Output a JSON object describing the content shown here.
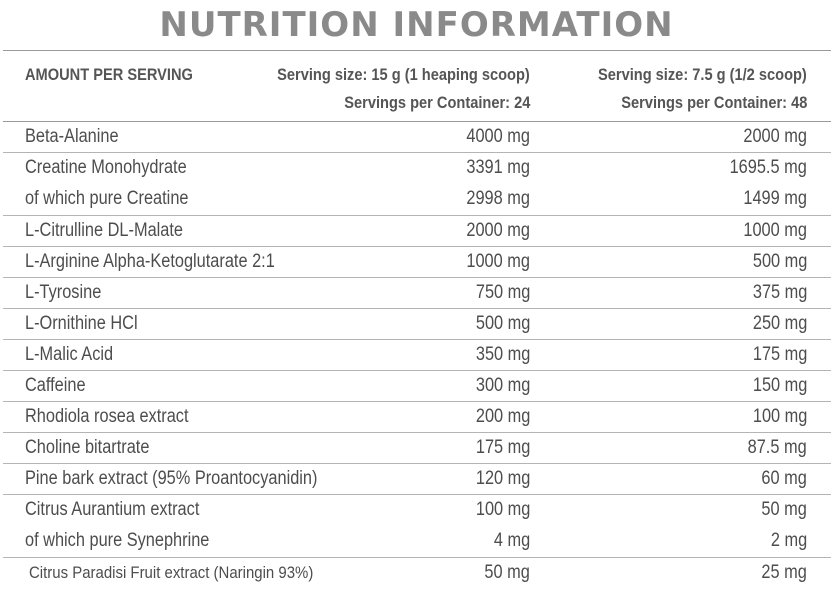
{
  "title": "NUTRITION INFORMATION",
  "header": {
    "amount_label": "AMOUNT PER SERVING",
    "col1_serving_size": "Serving size: 15 g (1 heaping scoop)",
    "col1_servings": "Servings per Container: 24",
    "col2_serving_size": "Serving size: 7.5 g (1/2 scoop)",
    "col2_servings": "Servings per Container: 48"
  },
  "rows": [
    {
      "name": "Beta-Alanine",
      "v1": "4000 mg",
      "v2": "2000 mg"
    },
    {
      "name": "Creatine Monohydrate",
      "v1": "3391 mg",
      "v2": "1695.5 mg",
      "sub_name": "of which pure Creatine",
      "sub_v1": "2998 mg",
      "sub_v2": "1499 mg"
    },
    {
      "name": "L-Citrulline DL-Malate",
      "v1": "2000 mg",
      "v2": "1000 mg"
    },
    {
      "name": "L-Arginine Alpha-Ketoglutarate 2:1",
      "v1": "1000 mg",
      "v2": "500 mg"
    },
    {
      "name": "L-Tyrosine",
      "v1": "750 mg",
      "v2": "375 mg"
    },
    {
      "name": "L-Ornithine HCl",
      "v1": "500 mg",
      "v2": "250 mg"
    },
    {
      "name": "L-Malic Acid",
      "v1": "350 mg",
      "v2": "175 mg"
    },
    {
      "name": "Caffeine",
      "v1": "300 mg",
      "v2": "150 mg"
    },
    {
      "name": "Rhodiola rosea extract",
      "v1": "200 mg",
      "v2": "100 mg"
    },
    {
      "name": "Choline bitartrate",
      "v1": "175 mg",
      "v2": "87.5 mg"
    },
    {
      "name": "Pine bark extract (95% Proantocyanidin)",
      "v1": "120 mg",
      "v2": "60 mg"
    },
    {
      "name": "Citrus Aurantium extract",
      "v1": "100 mg",
      "v2": "50 mg",
      "sub_name": "of which pure Synephrine",
      "sub_v1": "4 mg",
      "sub_v2": "2 mg"
    },
    {
      "name": "Citrus Paradisi Fruit extract (Naringin 93%)",
      "v1": "50 mg",
      "v2": "25 mg"
    }
  ]
}
